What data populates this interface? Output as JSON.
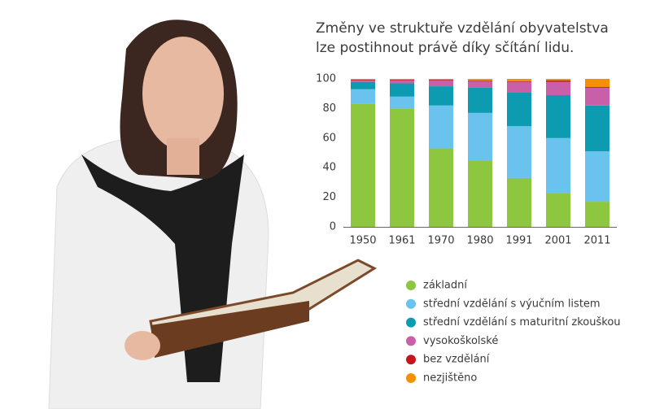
{
  "chart_data": {
    "type": "stacked_bar",
    "title": [
      "Změny ve struktuře vzdělání obyvatelstva",
      "lze postihnout právě díky sčítání lidu."
    ],
    "categories": [
      "1950",
      "1961",
      "1970",
      "1980",
      "1991",
      "2001",
      "2011"
    ],
    "series": [
      {
        "name": "základní",
        "color": "#8dc63f",
        "values": [
          83,
          80,
          53,
          45,
          33,
          23,
          17
        ]
      },
      {
        "name": "střední vzdělání s výučním listem",
        "color": "#6ac2ee",
        "values": [
          10,
          8,
          29,
          32,
          35,
          37,
          34
        ]
      },
      {
        "name": "střední vzdělání s maturitní zkouškou",
        "color": "#0c9bb0",
        "values": [
          5,
          9,
          13,
          17,
          23,
          29,
          31
        ]
      },
      {
        "name": "vysokoškolské",
        "color": "#c85fa8",
        "values": [
          1,
          2,
          4,
          4.5,
          7,
          9,
          12
        ]
      },
      {
        "name": "bez vzdělání",
        "color": "#c4161c",
        "values": [
          0.5,
          0.5,
          0.5,
          0.5,
          0.5,
          1,
          0.5
        ]
      },
      {
        "name": "nezjištěno",
        "color": "#f39200",
        "values": [
          0.5,
          0.5,
          0.5,
          1,
          1.5,
          1,
          5.5
        ]
      }
    ],
    "ylim": [
      0,
      100
    ],
    "yticks": [
      0,
      20,
      40,
      60,
      80,
      100
    ],
    "grid": false
  }
}
